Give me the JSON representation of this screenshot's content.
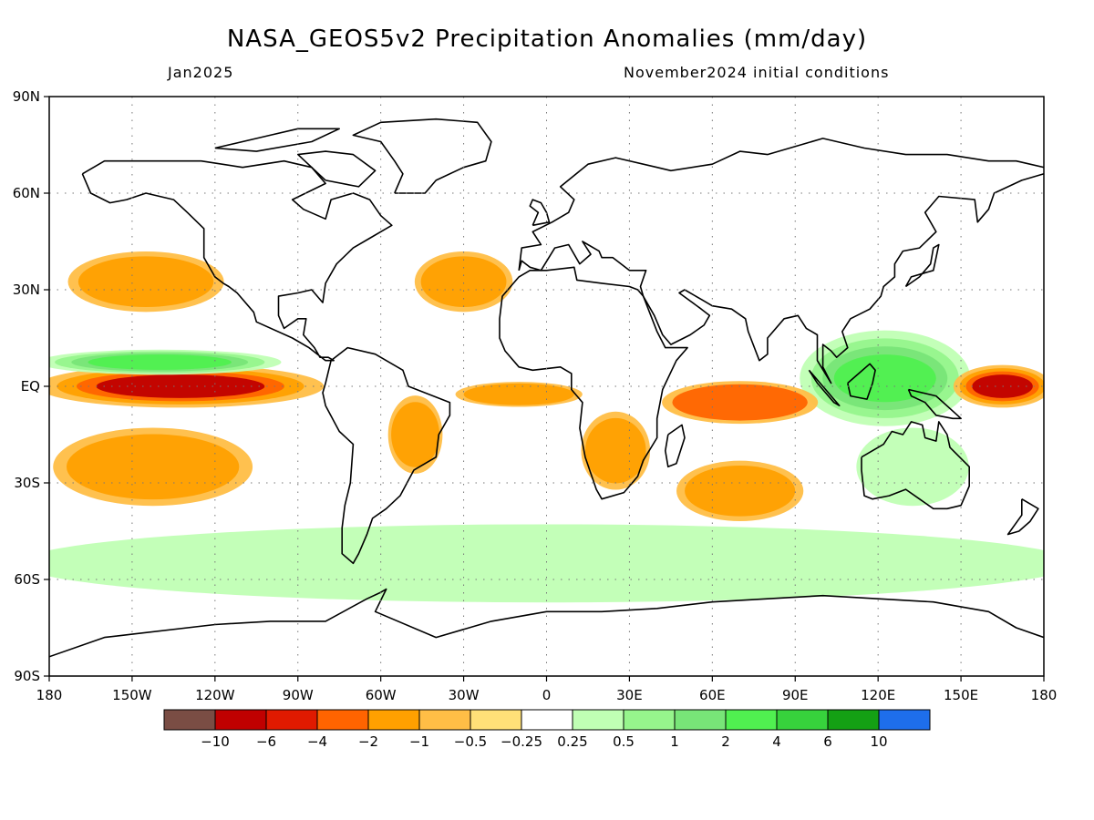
{
  "title": "NASA_GEOS5v2 Precipitation Anomalies (mm/day)",
  "valid_month": "Jan2025",
  "init_conditions": "November2024 initial conditions",
  "lat_labels": [
    "90N",
    "60N",
    "30N",
    "EQ",
    "30S",
    "60S",
    "90S"
  ],
  "lon_labels": [
    "180",
    "150W",
    "120W",
    "90W",
    "60W",
    "30W",
    "0",
    "30E",
    "60E",
    "90E",
    "120E",
    "150E",
    "180"
  ],
  "colorbar": {
    "colors": [
      "#7a4d44",
      "#c00000",
      "#e01a00",
      "#ff6400",
      "#ffa000",
      "#ffbe46",
      "#ffe078",
      "#ffffff",
      "#c0ffb4",
      "#96f58c",
      "#78e578",
      "#50f050",
      "#37d23c",
      "#14a014",
      "#1e6eeb"
    ],
    "labels": [
      "-10",
      "-6",
      "-4",
      "-2",
      "-1",
      "-0.5",
      "-0.25",
      "0.25",
      "0.5",
      "1",
      "2",
      "4",
      "6",
      "10"
    ]
  },
  "chart_data": {
    "type": "heatmap",
    "title": "NASA_GEOS5v2 Precipitation Anomalies (mm/day)",
    "xlabel": "",
    "ylabel": "",
    "x_range": [
      -180,
      180
    ],
    "y_range": [
      -90,
      90
    ],
    "grid": true,
    "units": "mm/day",
    "contour_levels": [
      -10,
      -6,
      -4,
      -2,
      -1,
      -0.5,
      -0.25,
      0.25,
      0.5,
      1,
      2,
      4,
      6,
      10
    ],
    "anomaly_regions": [
      {
        "name": "Central/East Pacific equatorial dry band",
        "lon": [
          -180,
          -85
        ],
        "lat": [
          -5,
          5
        ],
        "value": -6
      },
      {
        "name": "Pacific ITCZ wet band",
        "lon": [
          -180,
          -100
        ],
        "lat": [
          5,
          10
        ],
        "value": 4
      },
      {
        "name": "West Pacific maritime continent wet",
        "lon": [
          95,
          150
        ],
        "lat": [
          -10,
          15
        ],
        "value": 4
      },
      {
        "name": "Western Pacific equatorial dry",
        "lon": [
          150,
          180
        ],
        "lat": [
          -5,
          5
        ],
        "value": -6
      },
      {
        "name": "South Pacific dry band",
        "lon": [
          -175,
          -110
        ],
        "lat": [
          -35,
          -15
        ],
        "value": -1
      },
      {
        "name": "North Pacific dry",
        "lon": [
          -170,
          -120
        ],
        "lat": [
          25,
          40
        ],
        "value": -1
      },
      {
        "name": "Indian Ocean equatorial dry",
        "lon": [
          45,
          95
        ],
        "lat": [
          -10,
          0
        ],
        "value": -2
      },
      {
        "name": "Equatorial Atlantic dry",
        "lon": [
          -30,
          10
        ],
        "lat": [
          -5,
          0
        ],
        "value": -1
      },
      {
        "name": "Southern Africa dry",
        "lon": [
          15,
          35
        ],
        "lat": [
          -30,
          -10
        ],
        "value": -1
      },
      {
        "name": "South Indian Ocean dry band",
        "lon": [
          50,
          90
        ],
        "lat": [
          -40,
          -25
        ],
        "value": -1
      },
      {
        "name": "Brazil dry",
        "lon": [
          -55,
          -40
        ],
        "lat": [
          -25,
          -5
        ],
        "value": -1
      },
      {
        "name": "Southern Ocean wet belt",
        "lon": [
          -180,
          180
        ],
        "lat": [
          -65,
          -45
        ],
        "value": 0.5
      },
      {
        "name": "North Atlantic dry",
        "lon": [
          -45,
          -15
        ],
        "lat": [
          25,
          40
        ],
        "value": -1
      },
      {
        "name": "Australia wet",
        "lon": [
          115,
          150
        ],
        "lat": [
          -35,
          -15
        ],
        "value": 0.5
      }
    ]
  }
}
